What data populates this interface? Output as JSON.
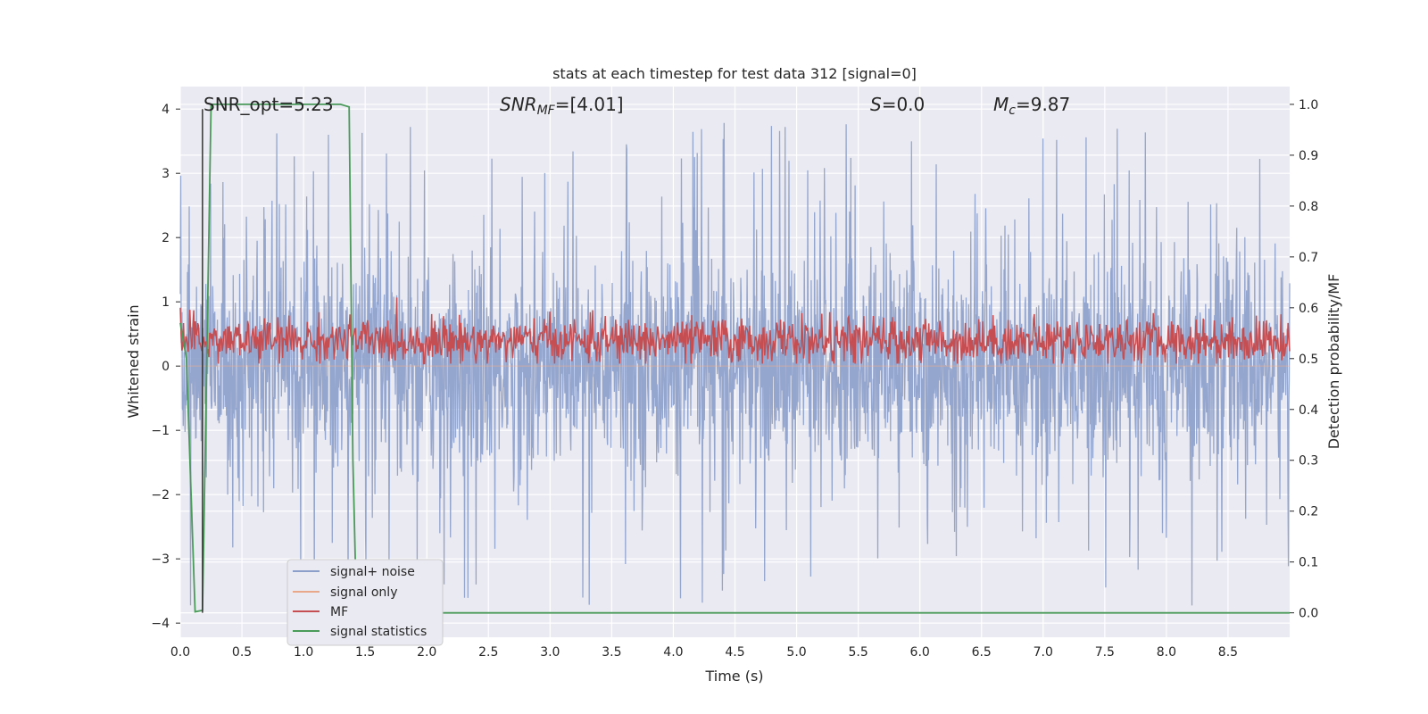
{
  "chart_data": {
    "type": "line",
    "title": "stats at each timestep for test data 312 [signal=0]",
    "xlabel": "Time (s)",
    "ylabel_left": "Whitened strain",
    "ylabel_right": "Detection probability/MF",
    "xlim": [
      0.0,
      9.0
    ],
    "ylim_left": [
      -4.22,
      4.35
    ],
    "ylim_right": [
      -0.048,
      1.035
    ],
    "x_ticks": [
      "0.0",
      "0.5",
      "1.0",
      "1.5",
      "2.0",
      "2.5",
      "3.0",
      "3.5",
      "4.0",
      "4.5",
      "5.0",
      "5.5",
      "6.0",
      "6.5",
      "7.0",
      "7.5",
      "8.0",
      "8.5"
    ],
    "y_ticks_left": [
      "4",
      "3",
      "2",
      "1",
      "0",
      "−1",
      "−2",
      "−3",
      "−4"
    ],
    "y_ticks_right": [
      "1.0",
      "0.9",
      "0.8",
      "0.7",
      "0.6",
      "0.5",
      "0.4",
      "0.3",
      "0.2",
      "0.1",
      "0.0"
    ],
    "grid": true,
    "legend_placement": "lower-left",
    "annotations": {
      "snr_opt": "SNR_opt=5.23",
      "snr_mf": "SNR_MF=[4.01]",
      "s": "S=0.0",
      "mc": "M_c=9.87"
    },
    "marker_line_x": 0.18,
    "series": [
      {
        "name": "signal+ noise",
        "color": "#8c9fca",
        "axis": "left",
        "description_range": [
          -3.9,
          4.0
        ],
        "approx_envelope": {
          "upper_typical": 1.5,
          "lower_typical": -1.5,
          "peak_max": 4.0,
          "peak_min": -3.9
        }
      },
      {
        "name": "signal only",
        "color": "#e9a88a",
        "axis": "left",
        "values_constant": 0.0
      },
      {
        "name": "MF",
        "color": "#c44e52",
        "axis": "right",
        "approx_range": [
          0.49,
          0.62
        ]
      },
      {
        "name": "signal statistics",
        "color": "#4a9a5a",
        "axis": "right",
        "x": [
          0.0,
          0.05,
          0.12,
          0.18,
          0.25,
          0.3,
          0.5,
          1.0,
          1.3,
          1.37,
          1.4,
          1.43,
          9.0
        ],
        "y": [
          0.57,
          0.5,
          0.002,
          0.005,
          1.0,
          1.0,
          1.0,
          1.0,
          1.0,
          0.995,
          0.3,
          0.0,
          0.0
        ]
      }
    ]
  }
}
